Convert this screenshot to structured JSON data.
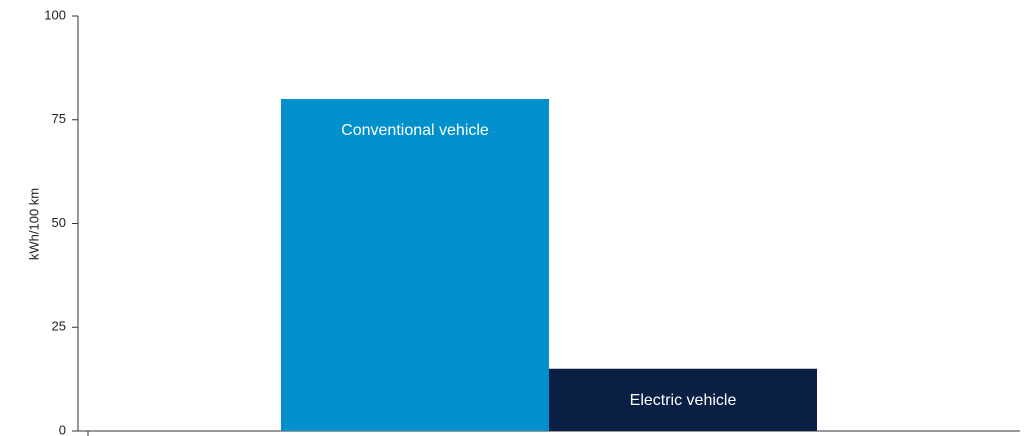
{
  "chart_data": {
    "type": "bar",
    "y_label": "kWh/100 km",
    "categories": [
      "Conventional vehicle",
      "Electric vehicle"
    ],
    "values": [
      80,
      15
    ],
    "colors": [
      "#0090cc",
      "#0a1f44"
    ],
    "ylim": [
      0,
      100
    ],
    "yticks": [
      0,
      25,
      50,
      75,
      100
    ],
    "grid": false
  }
}
